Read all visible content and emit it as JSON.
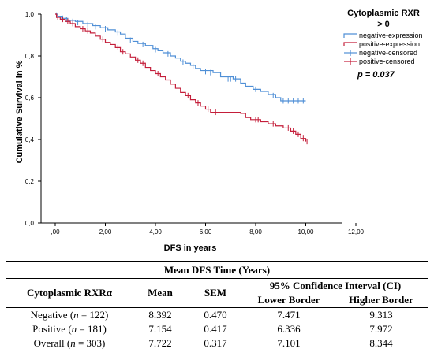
{
  "chart_data": {
    "type": "line",
    "subtype": "kaplan-meier",
    "title": "",
    "xlabel": "DFS in years",
    "ylabel": "Cumulative Survival in %",
    "xlim": [
      0,
      12
    ],
    "ylim": [
      0,
      1
    ],
    "x_ticks": [
      ",00",
      "2,00",
      "4,00",
      "6,00",
      "8,00",
      "10,00",
      "12,00"
    ],
    "y_ticks": [
      "0,0",
      "0,2",
      "0,4",
      "0,6",
      "0,8",
      "1,0"
    ],
    "grid": false,
    "legend_title": "Cytoplasmic RXR > 0",
    "legend_placement": "top-right",
    "legend": [
      {
        "label": "negative-expression",
        "color": "#4f8fd6",
        "kind": "line"
      },
      {
        "label": "positive-expression",
        "color": "#c41e3a",
        "kind": "line"
      },
      {
        "label": "negative-censored",
        "color": "#4f8fd6",
        "kind": "cross"
      },
      {
        "label": "positive-censored",
        "color": "#c41e3a",
        "kind": "cross"
      }
    ],
    "annotation": "p = 0.037",
    "series": [
      {
        "name": "negative-expression",
        "color": "#4f8fd6",
        "steps": [
          [
            0,
            1.0
          ],
          [
            0.1,
            0.99
          ],
          [
            0.25,
            0.98
          ],
          [
            0.5,
            0.97
          ],
          [
            0.8,
            0.965
          ],
          [
            1.1,
            0.955
          ],
          [
            1.5,
            0.945
          ],
          [
            1.8,
            0.935
          ],
          [
            2.1,
            0.925
          ],
          [
            2.4,
            0.915
          ],
          [
            2.6,
            0.905
          ],
          [
            2.8,
            0.885
          ],
          [
            3.1,
            0.87
          ],
          [
            3.3,
            0.86
          ],
          [
            3.6,
            0.85
          ],
          [
            3.9,
            0.835
          ],
          [
            4.1,
            0.825
          ],
          [
            4.3,
            0.815
          ],
          [
            4.6,
            0.8
          ],
          [
            4.8,
            0.79
          ],
          [
            5.0,
            0.775
          ],
          [
            5.2,
            0.765
          ],
          [
            5.4,
            0.755
          ],
          [
            5.6,
            0.74
          ],
          [
            5.8,
            0.73
          ],
          [
            6.3,
            0.72
          ],
          [
            6.6,
            0.7
          ],
          [
            7.1,
            0.69
          ],
          [
            7.4,
            0.67
          ],
          [
            7.6,
            0.655
          ],
          [
            7.9,
            0.64
          ],
          [
            8.2,
            0.63
          ],
          [
            8.5,
            0.615
          ],
          [
            8.8,
            0.6
          ],
          [
            9.0,
            0.585
          ],
          [
            10.0,
            0.585
          ]
        ],
        "censored": [
          [
            0.05,
            0.995
          ],
          [
            0.3,
            0.98
          ],
          [
            0.45,
            0.975
          ],
          [
            0.7,
            0.965
          ],
          [
            0.9,
            0.96
          ],
          [
            1.3,
            0.95
          ],
          [
            1.6,
            0.94
          ],
          [
            2.0,
            0.93
          ],
          [
            2.5,
            0.91
          ],
          [
            3.0,
            0.875
          ],
          [
            3.5,
            0.855
          ],
          [
            4.0,
            0.83
          ],
          [
            4.5,
            0.81
          ],
          [
            5.1,
            0.77
          ],
          [
            5.5,
            0.75
          ],
          [
            6.0,
            0.725
          ],
          [
            6.2,
            0.72
          ],
          [
            6.9,
            0.69
          ],
          [
            7.0,
            0.69
          ],
          [
            7.2,
            0.69
          ],
          [
            8.0,
            0.64
          ],
          [
            8.7,
            0.61
          ],
          [
            9.1,
            0.585
          ],
          [
            9.3,
            0.585
          ],
          [
            9.5,
            0.585
          ],
          [
            9.7,
            0.585
          ],
          [
            9.9,
            0.585
          ]
        ]
      },
      {
        "name": "positive-expression",
        "color": "#c41e3a",
        "steps": [
          [
            0,
            1.0
          ],
          [
            0.05,
            0.985
          ],
          [
            0.2,
            0.975
          ],
          [
            0.4,
            0.965
          ],
          [
            0.6,
            0.955
          ],
          [
            0.8,
            0.94
          ],
          [
            1.0,
            0.93
          ],
          [
            1.2,
            0.92
          ],
          [
            1.4,
            0.91
          ],
          [
            1.6,
            0.895
          ],
          [
            1.8,
            0.88
          ],
          [
            2.0,
            0.865
          ],
          [
            2.2,
            0.855
          ],
          [
            2.4,
            0.84
          ],
          [
            2.6,
            0.82
          ],
          [
            2.8,
            0.81
          ],
          [
            3.0,
            0.795
          ],
          [
            3.2,
            0.78
          ],
          [
            3.4,
            0.765
          ],
          [
            3.6,
            0.745
          ],
          [
            3.8,
            0.73
          ],
          [
            4.0,
            0.715
          ],
          [
            4.2,
            0.7
          ],
          [
            4.4,
            0.685
          ],
          [
            4.6,
            0.665
          ],
          [
            4.8,
            0.645
          ],
          [
            5.0,
            0.625
          ],
          [
            5.2,
            0.61
          ],
          [
            5.4,
            0.59
          ],
          [
            5.6,
            0.575
          ],
          [
            5.8,
            0.56
          ],
          [
            6.0,
            0.545
          ],
          [
            6.2,
            0.53
          ],
          [
            7.4,
            0.525
          ],
          [
            7.6,
            0.505
          ],
          [
            7.8,
            0.495
          ],
          [
            8.2,
            0.485
          ],
          [
            8.5,
            0.475
          ],
          [
            8.8,
            0.465
          ],
          [
            9.1,
            0.455
          ],
          [
            9.4,
            0.44
          ],
          [
            9.6,
            0.425
          ],
          [
            9.8,
            0.405
          ],
          [
            10.0,
            0.39
          ]
        ],
        "censored": [
          [
            0.1,
            0.985
          ],
          [
            0.3,
            0.975
          ],
          [
            0.5,
            0.965
          ],
          [
            0.7,
            0.955
          ],
          [
            1.1,
            0.93
          ],
          [
            1.3,
            0.92
          ],
          [
            1.9,
            0.88
          ],
          [
            2.5,
            0.84
          ],
          [
            2.7,
            0.82
          ],
          [
            3.3,
            0.78
          ],
          [
            3.5,
            0.765
          ],
          [
            4.1,
            0.715
          ],
          [
            5.3,
            0.61
          ],
          [
            5.7,
            0.575
          ],
          [
            6.1,
            0.545
          ],
          [
            6.4,
            0.53
          ],
          [
            8.0,
            0.495
          ],
          [
            8.1,
            0.495
          ],
          [
            8.7,
            0.475
          ],
          [
            9.3,
            0.455
          ],
          [
            9.5,
            0.44
          ],
          [
            9.7,
            0.425
          ],
          [
            9.9,
            0.405
          ],
          [
            10.05,
            0.39
          ]
        ]
      }
    ]
  },
  "table": {
    "caption": "Mean DFS Time (Years)",
    "ci_header": "95% Confidence Interval (CI)",
    "col_group": "Cytoplasmic RXRα",
    "col_mean": "Mean",
    "col_sem": "SEM",
    "col_lower": "Lower Border",
    "col_higher": "Higher Border",
    "rows": [
      {
        "label": "Negative (",
        "n": "n",
        "count": " = 122)",
        "mean": "8.392",
        "sem": "0.470",
        "lower": "7.471",
        "higher": "9.313"
      },
      {
        "label": "Positive (",
        "n": "n",
        "count": " = 181)",
        "mean": "7.154",
        "sem": "0.417",
        "lower": "6.336",
        "higher": "7.972"
      },
      {
        "label": "Overall (",
        "n": "n",
        "count": " = 303)",
        "mean": "7.722",
        "sem": "0.317",
        "lower": "7.101",
        "higher": "8.344"
      }
    ]
  }
}
